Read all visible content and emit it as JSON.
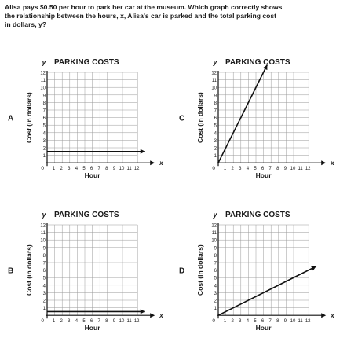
{
  "question": {
    "lines": [
      "Alisa pays $0.50 per hour to park her car at the museum. Which graph correctly shows",
      "the relationship between the hours, x, Alisa's car is parked and the total parking cost",
      "in dollars, y?"
    ]
  },
  "chart_data": [
    {
      "type": "line",
      "option": "A",
      "title": "PARKING COSTS",
      "xlabel": "Hour",
      "ylabel": "Cost (in dollars)",
      "x_axis_letter": "x",
      "y_axis_letter": "y",
      "origin_label": "0",
      "xlim": [
        0,
        12
      ],
      "ylim": [
        0,
        12
      ],
      "x_ticks": [
        "1",
        "2",
        "3",
        "4",
        "5",
        "6",
        "7",
        "8",
        "9",
        "10",
        "11",
        "12"
      ],
      "y_ticks": [
        "1",
        "2",
        "3",
        "4",
        "5",
        "6",
        "7",
        "8",
        "9",
        "10",
        "11",
        "12"
      ],
      "grid": true,
      "series": [
        {
          "x": [
            0,
            13
          ],
          "y": [
            1.5,
            1.5
          ]
        }
      ]
    },
    {
      "type": "line",
      "option": "C",
      "title": "PARKING COSTS",
      "xlabel": "Hour",
      "ylabel": "Cost (in dollars)",
      "x_axis_letter": "x",
      "y_axis_letter": "y",
      "origin_label": "0",
      "xlim": [
        0,
        12
      ],
      "ylim": [
        0,
        12
      ],
      "x_ticks": [
        "1",
        "2",
        "3",
        "4",
        "5",
        "6",
        "7",
        "8",
        "9",
        "10",
        "11",
        "12"
      ],
      "y_ticks": [
        "1",
        "2",
        "3",
        "4",
        "5",
        "6",
        "7",
        "8",
        "9",
        "10",
        "11",
        "12"
      ],
      "grid": true,
      "series": [
        {
          "x": [
            0,
            6.5
          ],
          "y": [
            0,
            13
          ]
        }
      ]
    },
    {
      "type": "line",
      "option": "B",
      "title": "PARKING COSTS",
      "xlabel": "Hour",
      "ylabel": "Cost (in dollars)",
      "x_axis_letter": "x",
      "y_axis_letter": "y",
      "origin_label": "0",
      "xlim": [
        0,
        12
      ],
      "ylim": [
        0,
        12
      ],
      "x_ticks": [
        "1",
        "2",
        "3",
        "4",
        "5",
        "6",
        "7",
        "8",
        "9",
        "10",
        "11",
        "12"
      ],
      "y_ticks": [
        "1",
        "2",
        "3",
        "4",
        "5",
        "6",
        "7",
        "8",
        "9",
        "10",
        "11",
        "12"
      ],
      "grid": true,
      "series": [
        {
          "x": [
            0,
            13
          ],
          "y": [
            0.5,
            0.5
          ]
        }
      ]
    },
    {
      "type": "line",
      "option": "D",
      "title": "PARKING COSTS",
      "xlabel": "Hour",
      "ylabel": "Cost (in dollars)",
      "x_axis_letter": "x",
      "y_axis_letter": "y",
      "origin_label": "0",
      "xlim": [
        0,
        12
      ],
      "ylim": [
        0,
        12
      ],
      "x_ticks": [
        "1",
        "2",
        "3",
        "4",
        "5",
        "6",
        "7",
        "8",
        "9",
        "10",
        "11",
        "12"
      ],
      "y_ticks": [
        "1",
        "2",
        "3",
        "4",
        "5",
        "6",
        "7",
        "8",
        "9",
        "10",
        "11",
        "12"
      ],
      "grid": true,
      "series": [
        {
          "x": [
            0,
            13
          ],
          "y": [
            0,
            6.5
          ]
        }
      ]
    }
  ]
}
